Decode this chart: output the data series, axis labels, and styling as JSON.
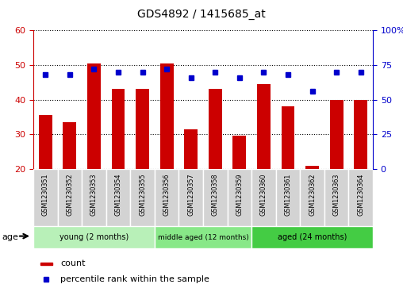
{
  "title": "GDS4892 / 1415685_at",
  "samples": [
    "GSM1230351",
    "GSM1230352",
    "GSM1230353",
    "GSM1230354",
    "GSM1230355",
    "GSM1230356",
    "GSM1230357",
    "GSM1230358",
    "GSM1230359",
    "GSM1230360",
    "GSM1230361",
    "GSM1230362",
    "GSM1230363",
    "GSM1230364"
  ],
  "counts": [
    35.5,
    33.5,
    50.5,
    43.0,
    43.0,
    50.5,
    31.5,
    43.0,
    29.5,
    44.5,
    38.0,
    21.0,
    40.0,
    40.0
  ],
  "percentiles": [
    68,
    68,
    72,
    70,
    70,
    72,
    66,
    70,
    66,
    70,
    68,
    56,
    70,
    70
  ],
  "ylim_left": [
    20,
    60
  ],
  "ylim_right": [
    0,
    100
  ],
  "bar_color": "#cc0000",
  "dot_color": "#0000cc",
  "bar_bottom": 20,
  "groups": [
    {
      "label": "young (2 months)",
      "start": 0,
      "end": 5,
      "color": "#b8f0b8"
    },
    {
      "label": "middle aged (12 months)",
      "start": 5,
      "end": 9,
      "color": "#88e888"
    },
    {
      "label": "aged (24 months)",
      "start": 9,
      "end": 14,
      "color": "#44cc44"
    }
  ],
  "legend_count_label": "count",
  "legend_percentile_label": "percentile rank within the sample",
  "xlabel_color": "#cc0000",
  "ylabel_right_color": "#0000cc",
  "cell_bg": "#d3d3d3",
  "cell_border": "#ffffff"
}
